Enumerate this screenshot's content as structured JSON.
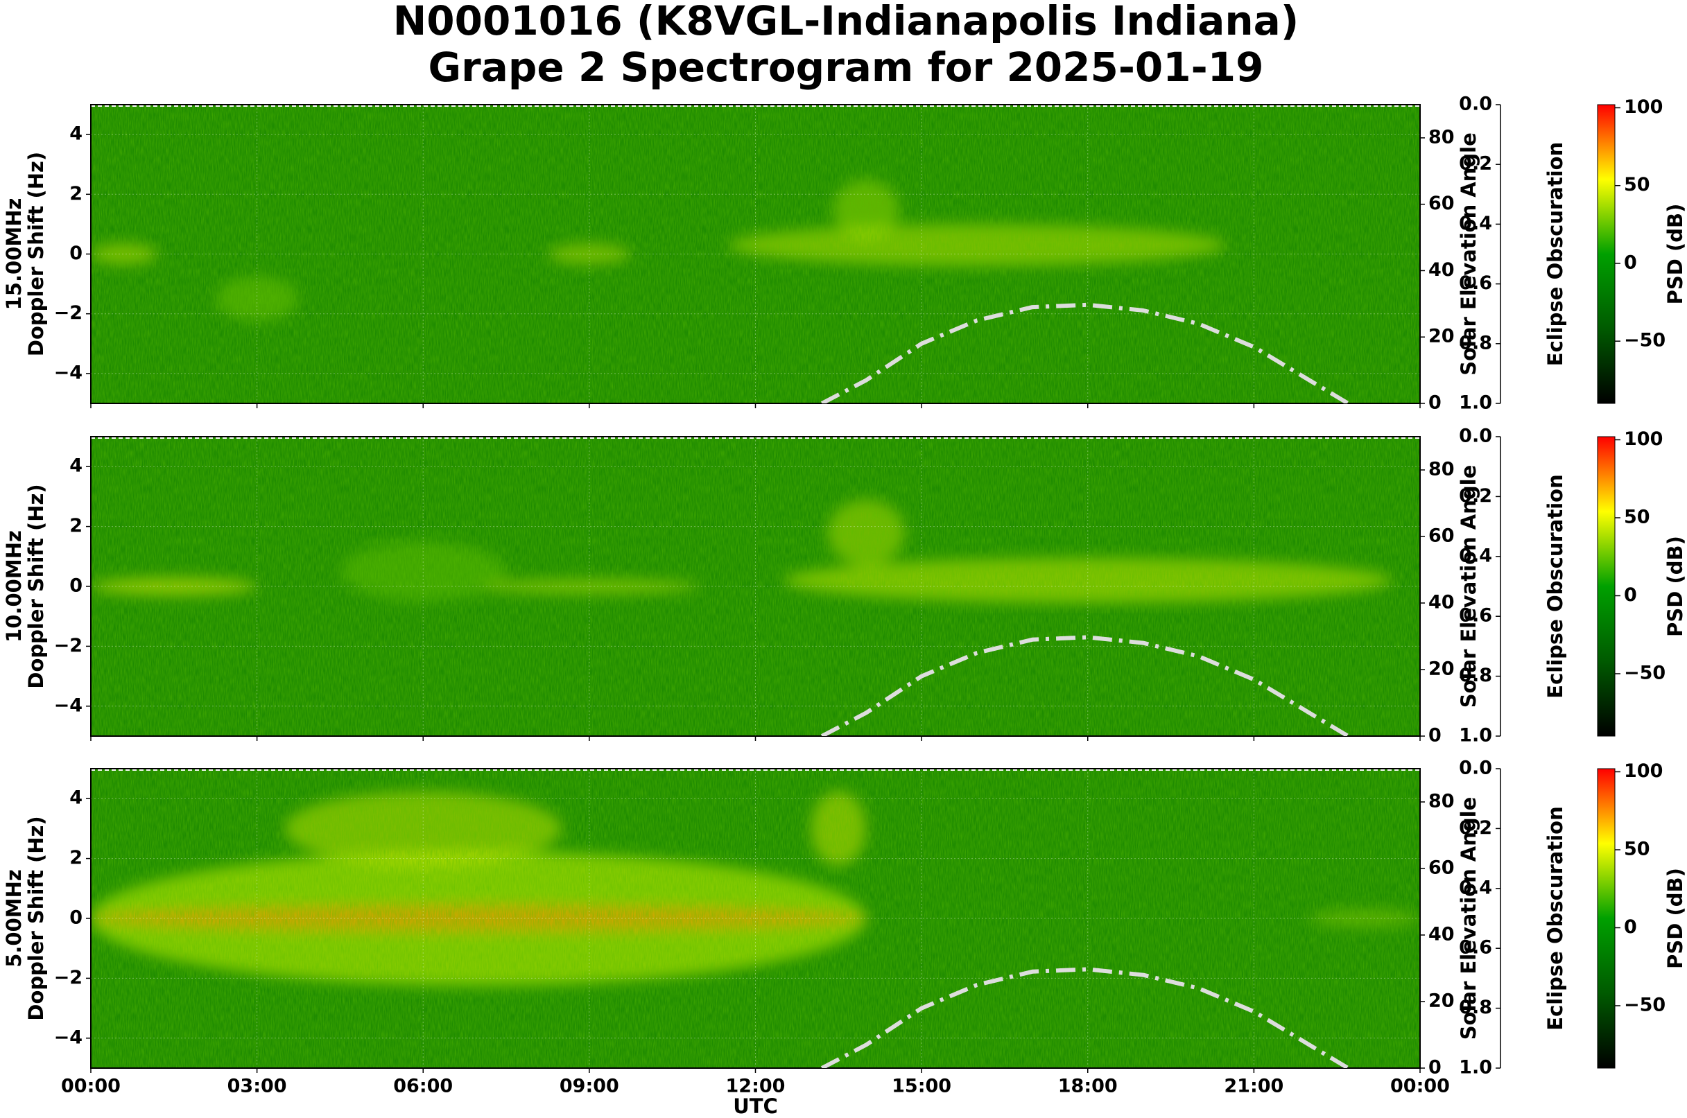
{
  "figure_title": [
    "N0001016 (K8VGL-Indianapolis Indiana)",
    "Grape 2 Spectrogram for 2025-01-19"
  ],
  "chart_data": [
    {
      "type": "spectrogram",
      "ylabel": [
        "15.00MHz",
        "Doppler Shift (Hz)"
      ],
      "xlim": [
        0,
        24
      ],
      "xticks": [
        0,
        3,
        6,
        9,
        12,
        15,
        18,
        21,
        24
      ],
      "ylim": [
        -5,
        5
      ],
      "yticks": [
        {
          "value": -4,
          "label": "−4"
        },
        {
          "value": -2,
          "label": "−2"
        },
        0,
        2,
        4
      ],
      "y2label": "Solar Elevation Angle",
      "y2lim": [
        0,
        90
      ],
      "y2ticks": [
        0,
        20,
        40,
        60,
        80
      ],
      "y3label": "Eclipse Obscuration",
      "y3lim": [
        0,
        1
      ],
      "y3inverted": true,
      "y3ticks": [
        {
          "value": 0,
          "label": "0.0"
        },
        0.2,
        0.4,
        0.6,
        0.8,
        {
          "value": 1,
          "label": "1.0"
        }
      ],
      "colorbar_label": "PSD (dB)",
      "clim": [
        -90,
        102
      ],
      "cticks": [
        {
          "value": -50,
          "label": "−50"
        },
        0,
        50,
        100
      ],
      "colormap": [
        "#000000",
        "#005a00",
        "#00a000",
        "#ffff00",
        "#ff0000"
      ],
      "grid": true,
      "series": [
        {
          "name": "Solar Elevation Angle",
          "color": "#dddddd",
          "axis": "y2",
          "x": [
            13.2,
            14,
            15,
            16,
            17,
            18,
            19,
            20,
            21,
            22,
            22.7
          ],
          "values": [
            0,
            7,
            18,
            25,
            29,
            29.7,
            28,
            24,
            17,
            7,
            0
          ]
        }
      ]
    },
    {
      "type": "spectrogram",
      "ylabel": [
        "10.00MHz",
        "Doppler Shift (Hz)"
      ],
      "xlim": [
        0,
        24
      ],
      "xticks": [
        0,
        3,
        6,
        9,
        12,
        15,
        18,
        21,
        24
      ],
      "ylim": [
        -5,
        5
      ],
      "yticks": [
        {
          "value": -4,
          "label": "−4"
        },
        {
          "value": -2,
          "label": "−2"
        },
        0,
        2,
        4
      ],
      "y2label": "Solar Elevation Angle",
      "y2lim": [
        0,
        90
      ],
      "y2ticks": [
        0,
        20,
        40,
        60,
        80
      ],
      "y3label": "Eclipse Obscuration",
      "y3lim": [
        0,
        1
      ],
      "y3inverted": true,
      "y3ticks": [
        {
          "value": 0,
          "label": "0.0"
        },
        0.2,
        0.4,
        0.6,
        0.8,
        {
          "value": 1,
          "label": "1.0"
        }
      ],
      "colorbar_label": "PSD (dB)",
      "clim": [
        -90,
        102
      ],
      "cticks": [
        {
          "value": -50,
          "label": "−50"
        },
        0,
        50,
        100
      ],
      "colormap": [
        "#000000",
        "#005a00",
        "#00a000",
        "#ffff00",
        "#ff0000"
      ],
      "grid": true,
      "series": [
        {
          "name": "Solar Elevation Angle",
          "color": "#dddddd",
          "axis": "y2",
          "x": [
            13.2,
            14,
            15,
            16,
            17,
            18,
            19,
            20,
            21,
            22,
            22.7
          ],
          "values": [
            0,
            7,
            18,
            25,
            29,
            29.7,
            28,
            24,
            17,
            7,
            0
          ]
        }
      ]
    },
    {
      "type": "spectrogram",
      "ylabel": [
        "5.00MHz",
        "Doppler Shift (Hz)"
      ],
      "xlabel": "UTC",
      "xlim": [
        0,
        24
      ],
      "xticks": [
        {
          "value": 0,
          "label": "00:00"
        },
        {
          "value": 3,
          "label": "03:00"
        },
        {
          "value": 6,
          "label": "06:00"
        },
        {
          "value": 9,
          "label": "09:00"
        },
        {
          "value": 12,
          "label": "12:00"
        },
        {
          "value": 15,
          "label": "15:00"
        },
        {
          "value": 18,
          "label": "18:00"
        },
        {
          "value": 21,
          "label": "21:00"
        },
        {
          "value": 24,
          "label": "00:00"
        }
      ],
      "ylim": [
        -5,
        5
      ],
      "yticks": [
        {
          "value": -4,
          "label": "−4"
        },
        {
          "value": -2,
          "label": "−2"
        },
        0,
        2,
        4
      ],
      "y2label": "Solar Elevation Angle",
      "y2lim": [
        0,
        90
      ],
      "y2ticks": [
        0,
        20,
        40,
        60,
        80
      ],
      "y3label": "Eclipse Obscuration",
      "y3lim": [
        0,
        1
      ],
      "y3inverted": true,
      "y3ticks": [
        {
          "value": 0,
          "label": "0.0"
        },
        0.2,
        0.4,
        0.6,
        0.8,
        {
          "value": 1,
          "label": "1.0"
        }
      ],
      "colorbar_label": "PSD (dB)",
      "clim": [
        -90,
        102
      ],
      "cticks": [
        {
          "value": -50,
          "label": "−50"
        },
        0,
        50,
        100
      ],
      "colormap": [
        "#000000",
        "#005a00",
        "#00a000",
        "#ffff00",
        "#ff0000"
      ],
      "grid": true,
      "series": [
        {
          "name": "Solar Elevation Angle",
          "color": "#dddddd",
          "axis": "y2",
          "x": [
            13.2,
            14,
            15,
            16,
            17,
            18,
            19,
            20,
            21,
            22,
            22.7
          ],
          "values": [
            0,
            7,
            18,
            25,
            29,
            29.7,
            28,
            24,
            17,
            7,
            0
          ]
        }
      ]
    }
  ]
}
